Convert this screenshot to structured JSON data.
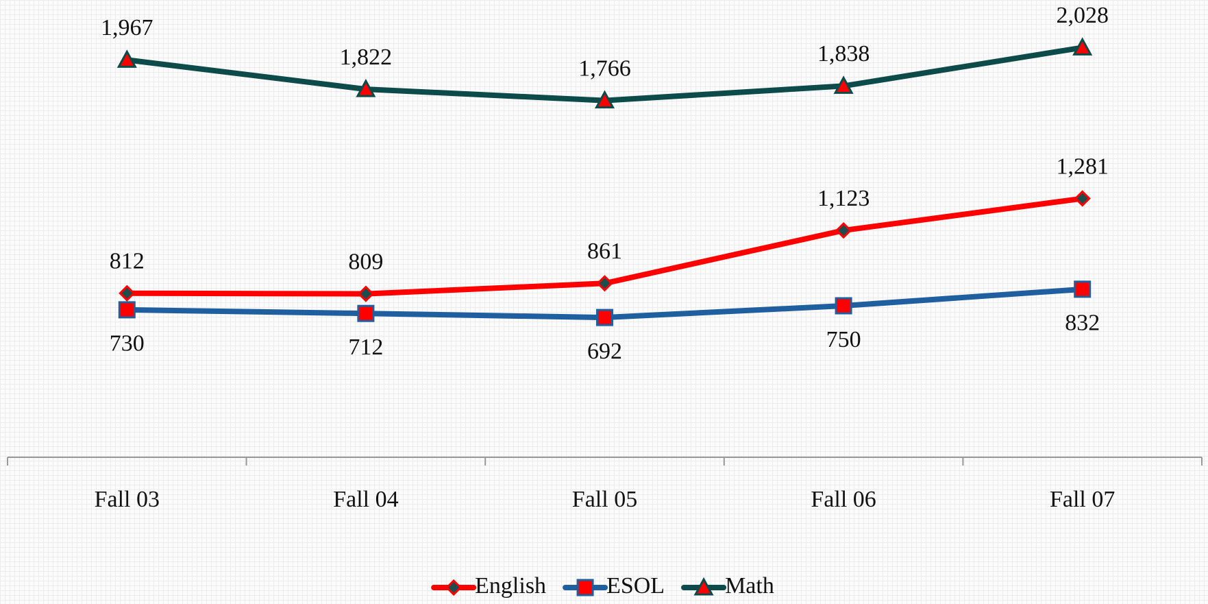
{
  "chart_data": {
    "type": "line",
    "categories": [
      "Fall 03",
      "Fall 04",
      "Fall 05",
      "Fall 06",
      "Fall 07"
    ],
    "series": [
      {
        "name": "English",
        "color": "#ff0000",
        "marker": "diamond",
        "marker_color": "#1f4d4d",
        "label_position": "above",
        "values": [
          812,
          809,
          861,
          1123,
          1281
        ],
        "value_labels": [
          "812",
          "809",
          "861",
          "1,123",
          "1,281"
        ]
      },
      {
        "name": "ESOL",
        "color": "#1f5f9f",
        "marker": "square",
        "marker_color": "#ff0000",
        "label_position": "below",
        "values": [
          730,
          712,
          692,
          750,
          832
        ],
        "value_labels": [
          "730",
          "712",
          "692",
          "750",
          "832"
        ]
      },
      {
        "name": "Math",
        "color": "#0d4a4a",
        "marker": "triangle",
        "marker_color": "#ff0000",
        "label_position": "above",
        "values": [
          1967,
          1822,
          1766,
          1838,
          2028
        ],
        "value_labels": [
          "1,967",
          "1,822",
          "1,766",
          "1,838",
          "2,028"
        ]
      }
    ],
    "ylim": [
      0,
      2250
    ],
    "legend": "bottom"
  }
}
